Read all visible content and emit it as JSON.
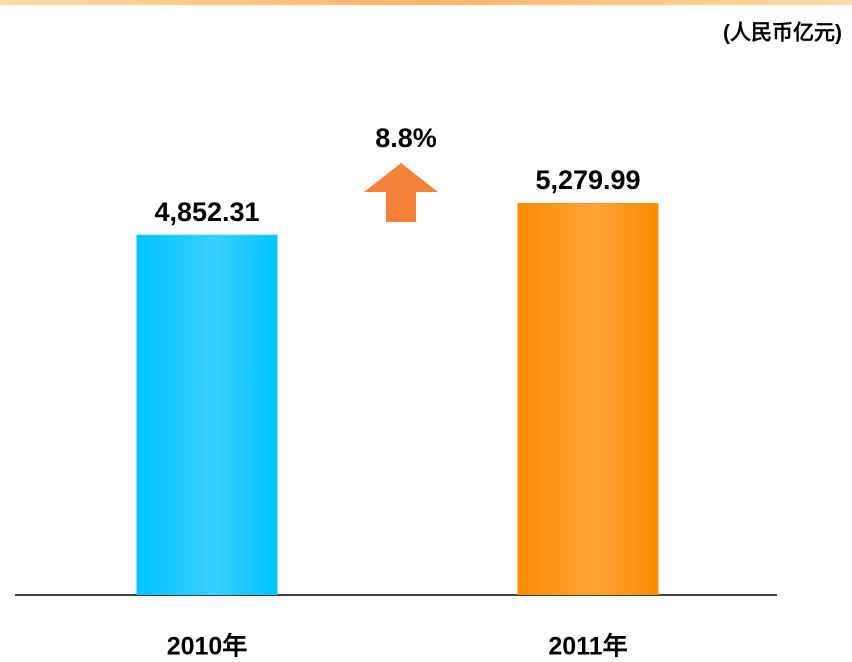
{
  "chart_data": {
    "type": "bar",
    "unit_label": "(人民币亿元)",
    "annotation": "8.8%",
    "categories": [
      "2010年",
      "2011年"
    ],
    "values": [
      4852.31,
      5279.99
    ],
    "value_labels": [
      "4,852.31",
      "5,279.99"
    ],
    "colors": [
      "#00c3ff",
      "#ff8a00"
    ]
  }
}
